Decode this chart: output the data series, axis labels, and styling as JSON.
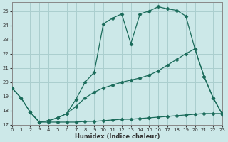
{
  "xlabel": "Humidex (Indice chaleur)",
  "background_color": "#cce8e8",
  "grid_color": "#aacece",
  "line_color": "#1a6b5a",
  "x_min": 0,
  "x_max": 23,
  "y_min": 17,
  "y_max": 25.6,
  "series": [
    {
      "x": [
        0,
        1,
        2,
        3,
        4,
        5,
        6,
        7,
        8,
        9,
        10,
        11,
        12,
        13,
        14,
        15,
        16,
        17,
        18,
        19,
        20,
        21,
        22,
        23
      ],
      "y": [
        19.6,
        18.9,
        17.9,
        17.2,
        17.2,
        17.2,
        17.2,
        17.2,
        17.25,
        17.25,
        17.3,
        17.35,
        17.4,
        17.4,
        17.45,
        17.5,
        17.55,
        17.6,
        17.65,
        17.7,
        17.75,
        17.8,
        17.8,
        17.8
      ]
    },
    {
      "x": [
        2,
        3,
        4,
        5,
        6,
        7,
        8,
        9,
        10,
        11,
        12,
        13,
        14,
        15,
        16,
        17,
        18,
        19,
        20,
        21,
        22,
        23
      ],
      "y": [
        17.9,
        17.2,
        17.3,
        17.5,
        17.8,
        18.3,
        18.9,
        19.3,
        19.6,
        19.8,
        20.0,
        20.15,
        20.3,
        20.5,
        20.8,
        21.2,
        21.6,
        22.0,
        22.35,
        20.4,
        18.9,
        17.75
      ]
    },
    {
      "x": [
        0,
        1,
        2,
        3,
        4,
        5,
        6,
        7,
        8,
        9,
        10,
        11,
        12,
        13,
        14,
        15,
        16,
        17,
        18,
        19,
        20,
        21,
        22,
        23
      ],
      "y": [
        19.6,
        18.9,
        17.9,
        17.2,
        17.3,
        17.5,
        17.8,
        18.8,
        20.0,
        20.7,
        24.1,
        24.5,
        24.8,
        22.7,
        24.8,
        25.0,
        25.3,
        25.15,
        25.05,
        24.65,
        22.35,
        20.4,
        18.9,
        17.75
      ]
    }
  ],
  "yticks": [
    17,
    18,
    19,
    20,
    21,
    22,
    23,
    24,
    25
  ],
  "xticks": [
    0,
    1,
    2,
    3,
    4,
    5,
    6,
    7,
    8,
    9,
    10,
    11,
    12,
    13,
    14,
    15,
    16,
    17,
    18,
    19,
    20,
    21,
    22,
    23
  ]
}
